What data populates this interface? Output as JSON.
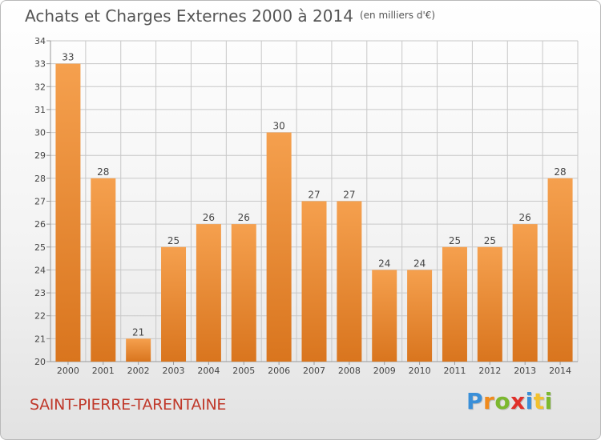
{
  "title": "Achats et Charges Externes 2000 à 2014",
  "unit": "(en milliers d'€)",
  "commune": "SAINT-PIERRE-TARENTAINE",
  "logo": {
    "text": "Proxiti",
    "letters": [
      "P",
      "r",
      "o",
      "x",
      "i",
      "t",
      "i"
    ],
    "colors": [
      "#3a8fd8",
      "#f08a1c",
      "#7cb82f",
      "#e0302a",
      "#3a8fd8",
      "#f2c12e",
      "#7cb82f"
    ]
  },
  "colors": {
    "bar_top": "#f5a04e",
    "bar_bottom": "#d9751e",
    "grid": "#c8c8c8",
    "title": "#555555",
    "commune": "#c0392b"
  },
  "chart_data": {
    "type": "bar",
    "categories": [
      "2000",
      "2001",
      "2002",
      "2003",
      "2004",
      "2005",
      "2006",
      "2007",
      "2008",
      "2009",
      "2010",
      "2011",
      "2012",
      "2013",
      "2014"
    ],
    "values": [
      33,
      28,
      21,
      25,
      26,
      26,
      30,
      27,
      27,
      24,
      24,
      25,
      25,
      26,
      28
    ],
    "title": "Achats et Charges Externes 2000 à 2014",
    "subtitle": "(en milliers d'€)",
    "xlabel": "",
    "ylabel": "",
    "ylim": [
      20,
      34
    ],
    "yticks": [
      20,
      21,
      22,
      23,
      24,
      25,
      26,
      27,
      28,
      29,
      30,
      31,
      32,
      33,
      34
    ],
    "grid": true,
    "data_labels": true
  }
}
